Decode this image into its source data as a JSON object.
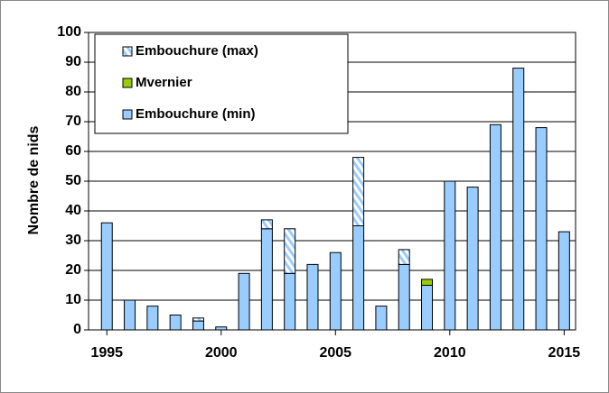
{
  "chart_data": {
    "type": "bar",
    "stacked": true,
    "y_label": "Nombre de nids",
    "x": [
      1995,
      1996,
      1997,
      1998,
      1999,
      2000,
      2001,
      2002,
      2003,
      2004,
      2005,
      2006,
      2007,
      2008,
      2009,
      2010,
      2011,
      2012,
      2013,
      2014,
      2015
    ],
    "series": [
      {
        "name": "Embouchure (min)",
        "color": "#99ccff",
        "pattern": "solid",
        "values": [
          36,
          10,
          8,
          5,
          3,
          1,
          19,
          34,
          19,
          22,
          26,
          35,
          8,
          22,
          15,
          50,
          48,
          69,
          88,
          68,
          33
        ]
      },
      {
        "name": "Mvernier",
        "color": "#99cc00",
        "pattern": "solid",
        "values": [
          0,
          0,
          0,
          0,
          0,
          0,
          0,
          0,
          0,
          0,
          0,
          0,
          0,
          0,
          2,
          0,
          0,
          0,
          0,
          0,
          0
        ]
      },
      {
        "name": "Embouchure (max)",
        "color": "#99ccff",
        "pattern": "hatch",
        "values": [
          0,
          0,
          0,
          0,
          1,
          0,
          0,
          3,
          15,
          0,
          0,
          23,
          0,
          5,
          0,
          0,
          0,
          0,
          0,
          0,
          0
        ]
      }
    ],
    "xlim": [
      1994.2,
      2015.5
    ],
    "xticks": [
      1995,
      2000,
      2005,
      2010,
      2015
    ],
    "ylim": [
      0,
      100
    ],
    "yticks": [
      0,
      10,
      20,
      30,
      40,
      50,
      60,
      70,
      80,
      90,
      100
    ],
    "grid": true,
    "legend": "top-left"
  }
}
